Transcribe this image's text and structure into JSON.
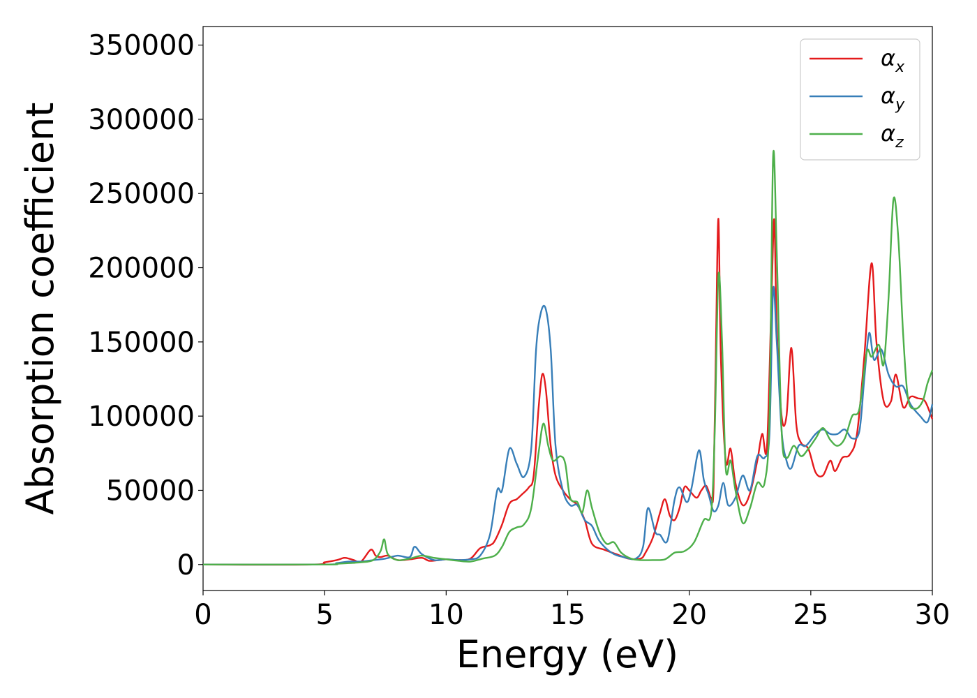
{
  "chart_data": {
    "type": "line",
    "xlabel": "Energy (eV)",
    "ylabel": "Absorption coefficient",
    "xlim": [
      0,
      30
    ],
    "ylim": [
      -17500,
      362500
    ],
    "x_ticks": [
      "0",
      "5",
      "10",
      "15",
      "20",
      "25",
      "30"
    ],
    "y_ticks": [
      "0",
      "50000",
      "100000",
      "150000",
      "200000",
      "250000",
      "300000",
      "350000"
    ],
    "grid": false,
    "legend_position": "top-right",
    "series": [
      {
        "name": "αx",
        "legend_main": "α",
        "legend_sub": "x",
        "color": "#e41a1c",
        "points": [
          [
            0,
            0
          ],
          [
            4.5,
            0
          ],
          [
            5,
            1500
          ],
          [
            5.5,
            3000
          ],
          [
            5.8,
            4500
          ],
          [
            6,
            4000
          ],
          [
            6.2,
            3000
          ],
          [
            6.5,
            2000
          ],
          [
            6.9,
            10000
          ],
          [
            7.1,
            6000
          ],
          [
            7.3,
            5000
          ],
          [
            7.6,
            6000
          ],
          [
            8,
            3000
          ],
          [
            8.5,
            3500
          ],
          [
            9,
            4500
          ],
          [
            9.3,
            2500
          ],
          [
            9.7,
            3000
          ],
          [
            10,
            3500
          ],
          [
            10.5,
            3000
          ],
          [
            11,
            4000
          ],
          [
            11.4,
            11000
          ],
          [
            11.8,
            13000
          ],
          [
            12,
            16000
          ],
          [
            12.3,
            27000
          ],
          [
            12.6,
            41000
          ],
          [
            12.9,
            44000
          ],
          [
            13.1,
            47000
          ],
          [
            13.4,
            52000
          ],
          [
            13.6,
            60000
          ],
          [
            13.8,
            105000
          ],
          [
            13.95,
            128000
          ],
          [
            14.1,
            118000
          ],
          [
            14.3,
            80000
          ],
          [
            14.5,
            60000
          ],
          [
            14.8,
            50000
          ],
          [
            15.1,
            44000
          ],
          [
            15.4,
            40000
          ],
          [
            15.7,
            30000
          ],
          [
            16,
            14000
          ],
          [
            16.5,
            10000
          ],
          [
            17,
            7000
          ],
          [
            17.5,
            4000
          ],
          [
            18,
            4000
          ],
          [
            18.2,
            8000
          ],
          [
            18.5,
            18000
          ],
          [
            18.8,
            35000
          ],
          [
            19,
            44000
          ],
          [
            19.2,
            33000
          ],
          [
            19.4,
            30000
          ],
          [
            19.6,
            38000
          ],
          [
            19.8,
            52000
          ],
          [
            20,
            50000
          ],
          [
            20.3,
            45000
          ],
          [
            20.5,
            50000
          ],
          [
            20.7,
            53000
          ],
          [
            20.9,
            45000
          ],
          [
            21,
            52000
          ],
          [
            21.1,
            150000
          ],
          [
            21.2,
            233000
          ],
          [
            21.3,
            140000
          ],
          [
            21.5,
            70000
          ],
          [
            21.7,
            78000
          ],
          [
            21.9,
            55000
          ],
          [
            22.2,
            40000
          ],
          [
            22.5,
            48000
          ],
          [
            22.8,
            70000
          ],
          [
            23,
            88000
          ],
          [
            23.2,
            80000
          ],
          [
            23.4,
            190000
          ],
          [
            23.5,
            232000
          ],
          [
            23.6,
            160000
          ],
          [
            23.8,
            100000
          ],
          [
            24,
            100000
          ],
          [
            24.2,
            146000
          ],
          [
            24.4,
            95000
          ],
          [
            24.6,
            82000
          ],
          [
            24.9,
            78000
          ],
          [
            25.2,
            62000
          ],
          [
            25.5,
            60000
          ],
          [
            25.8,
            70000
          ],
          [
            26,
            63000
          ],
          [
            26.3,
            72000
          ],
          [
            26.6,
            74000
          ],
          [
            26.9,
            88000
          ],
          [
            27.2,
            140000
          ],
          [
            27.5,
            203000
          ],
          [
            27.7,
            150000
          ],
          [
            28,
            110000
          ],
          [
            28.3,
            110000
          ],
          [
            28.5,
            128000
          ],
          [
            28.8,
            106000
          ],
          [
            29.1,
            113000
          ],
          [
            29.4,
            112000
          ],
          [
            29.7,
            110000
          ],
          [
            30,
            98000
          ]
        ]
      },
      {
        "name": "αy",
        "legend_main": "α",
        "legend_sub": "y",
        "color": "#377eb8",
        "points": [
          [
            0,
            0
          ],
          [
            5,
            0
          ],
          [
            5.5,
            1000
          ],
          [
            6,
            2000
          ],
          [
            6.5,
            2000
          ],
          [
            7,
            3000
          ],
          [
            7.5,
            4000
          ],
          [
            8,
            6000
          ],
          [
            8.5,
            5000
          ],
          [
            8.7,
            12000
          ],
          [
            9,
            7000
          ],
          [
            9.5,
            3000
          ],
          [
            10,
            3500
          ],
          [
            10.5,
            3000
          ],
          [
            11,
            3500
          ],
          [
            11.4,
            6000
          ],
          [
            11.8,
            20000
          ],
          [
            12.1,
            50000
          ],
          [
            12.3,
            50000
          ],
          [
            12.6,
            78000
          ],
          [
            12.9,
            68000
          ],
          [
            13.2,
            59000
          ],
          [
            13.5,
            78000
          ],
          [
            13.7,
            145000
          ],
          [
            13.9,
            170000
          ],
          [
            14.1,
            172000
          ],
          [
            14.3,
            145000
          ],
          [
            14.5,
            80000
          ],
          [
            14.8,
            50000
          ],
          [
            15.1,
            40000
          ],
          [
            15.4,
            40000
          ],
          [
            15.7,
            30000
          ],
          [
            16,
            26000
          ],
          [
            16.3,
            16000
          ],
          [
            16.8,
            8000
          ],
          [
            17.3,
            5000
          ],
          [
            17.8,
            4000
          ],
          [
            18.1,
            12000
          ],
          [
            18.3,
            38000
          ],
          [
            18.6,
            22000
          ],
          [
            18.8,
            20000
          ],
          [
            19.1,
            16000
          ],
          [
            19.4,
            44000
          ],
          [
            19.6,
            52000
          ],
          [
            19.9,
            42000
          ],
          [
            20.1,
            52000
          ],
          [
            20.4,
            77000
          ],
          [
            20.6,
            57000
          ],
          [
            20.8,
            47000
          ],
          [
            21,
            36000
          ],
          [
            21.2,
            40000
          ],
          [
            21.4,
            55000
          ],
          [
            21.6,
            40000
          ],
          [
            21.9,
            45000
          ],
          [
            22.2,
            60000
          ],
          [
            22.5,
            50000
          ],
          [
            22.8,
            73000
          ],
          [
            23.1,
            72000
          ],
          [
            23.3,
            88000
          ],
          [
            23.45,
            185000
          ],
          [
            23.6,
            150000
          ],
          [
            23.8,
            90000
          ],
          [
            24,
            70000
          ],
          [
            24.2,
            65000
          ],
          [
            24.5,
            80000
          ],
          [
            24.8,
            80000
          ],
          [
            25.2,
            88000
          ],
          [
            25.5,
            91000
          ],
          [
            25.8,
            88000
          ],
          [
            26.1,
            88000
          ],
          [
            26.4,
            91000
          ],
          [
            26.7,
            85000
          ],
          [
            27,
            90000
          ],
          [
            27.2,
            125000
          ],
          [
            27.4,
            156000
          ],
          [
            27.6,
            138000
          ],
          [
            27.9,
            145000
          ],
          [
            28.2,
            128000
          ],
          [
            28.5,
            120000
          ],
          [
            28.8,
            120000
          ],
          [
            29.1,
            108000
          ],
          [
            29.5,
            100000
          ],
          [
            29.8,
            96000
          ],
          [
            30,
            108000
          ]
        ]
      },
      {
        "name": "αz",
        "legend_main": "α",
        "legend_sub": "z",
        "color": "#4daf4a",
        "points": [
          [
            0,
            0
          ],
          [
            5,
            0
          ],
          [
            5.5,
            500
          ],
          [
            6,
            1000
          ],
          [
            6.5,
            1500
          ],
          [
            7,
            3000
          ],
          [
            7.3,
            9000
          ],
          [
            7.45,
            17000
          ],
          [
            7.6,
            7000
          ],
          [
            8,
            3000
          ],
          [
            8.5,
            4000
          ],
          [
            9,
            6000
          ],
          [
            9.5,
            4500
          ],
          [
            10,
            3500
          ],
          [
            10.5,
            2500
          ],
          [
            11,
            2000
          ],
          [
            11.5,
            4000
          ],
          [
            12,
            6000
          ],
          [
            12.3,
            12000
          ],
          [
            12.6,
            22000
          ],
          [
            12.9,
            25000
          ],
          [
            13.2,
            27000
          ],
          [
            13.5,
            38000
          ],
          [
            13.8,
            75000
          ],
          [
            14,
            95000
          ],
          [
            14.2,
            80000
          ],
          [
            14.4,
            70000
          ],
          [
            14.7,
            73000
          ],
          [
            14.9,
            68000
          ],
          [
            15.1,
            45000
          ],
          [
            15.4,
            42000
          ],
          [
            15.6,
            35000
          ],
          [
            15.8,
            50000
          ],
          [
            16,
            38000
          ],
          [
            16.3,
            22000
          ],
          [
            16.6,
            14000
          ],
          [
            16.9,
            15000
          ],
          [
            17.2,
            8000
          ],
          [
            17.6,
            4000
          ],
          [
            18,
            3000
          ],
          [
            18.5,
            3000
          ],
          [
            19,
            3500
          ],
          [
            19.4,
            8000
          ],
          [
            19.8,
            9000
          ],
          [
            20.2,
            15000
          ],
          [
            20.6,
            30000
          ],
          [
            20.9,
            35000
          ],
          [
            21.05,
            90000
          ],
          [
            21.2,
            195000
          ],
          [
            21.35,
            150000
          ],
          [
            21.5,
            65000
          ],
          [
            21.7,
            70000
          ],
          [
            21.9,
            50000
          ],
          [
            22.2,
            28000
          ],
          [
            22.5,
            38000
          ],
          [
            22.8,
            55000
          ],
          [
            23.1,
            55000
          ],
          [
            23.3,
            100000
          ],
          [
            23.45,
            275000
          ],
          [
            23.6,
            210000
          ],
          [
            23.8,
            90000
          ],
          [
            24,
            72000
          ],
          [
            24.3,
            80000
          ],
          [
            24.6,
            73000
          ],
          [
            24.9,
            78000
          ],
          [
            25.2,
            85000
          ],
          [
            25.5,
            92000
          ],
          [
            25.8,
            84000
          ],
          [
            26.1,
            80000
          ],
          [
            26.4,
            85000
          ],
          [
            26.7,
            100000
          ],
          [
            27,
            105000
          ],
          [
            27.3,
            143000
          ],
          [
            27.5,
            140000
          ],
          [
            27.8,
            148000
          ],
          [
            28,
            135000
          ],
          [
            28.2,
            180000
          ],
          [
            28.4,
            246000
          ],
          [
            28.6,
            220000
          ],
          [
            28.8,
            155000
          ],
          [
            29,
            112000
          ],
          [
            29.3,
            105000
          ],
          [
            29.6,
            110000
          ],
          [
            29.8,
            122000
          ],
          [
            30,
            131000
          ]
        ]
      }
    ]
  }
}
